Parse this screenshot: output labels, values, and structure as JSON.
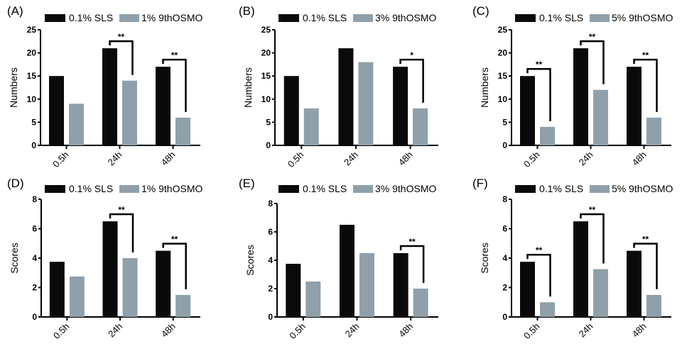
{
  "colors": {
    "sls": "#0a0a0a",
    "osmo": "#8fa0aa",
    "axis": "#000000"
  },
  "chart_data": [
    {
      "type": "bar",
      "panel": "(A)",
      "ylabel": "Numbers",
      "ylim": [
        0,
        25
      ],
      "yticks": [
        0,
        5,
        10,
        15,
        20,
        25
      ],
      "categories": [
        "0.5h",
        "24h",
        "48h"
      ],
      "series": [
        {
          "name": "0.1% SLS",
          "values": [
            15,
            21,
            17
          ]
        },
        {
          "name": "1% 9thOSMO",
          "values": [
            9,
            14,
            6
          ]
        }
      ],
      "significance": [
        null,
        "**",
        "**"
      ]
    },
    {
      "type": "bar",
      "panel": "(B)",
      "ylabel": "Numbers",
      "ylim": [
        0,
        25
      ],
      "yticks": [
        0,
        5,
        10,
        15,
        20,
        25
      ],
      "categories": [
        "0.5h",
        "24h",
        "48h"
      ],
      "series": [
        {
          "name": "0.1% SLS",
          "values": [
            15,
            21,
            17
          ]
        },
        {
          "name": "3% 9thOSMO",
          "values": [
            8,
            18,
            8
          ]
        }
      ],
      "significance": [
        null,
        null,
        "*"
      ]
    },
    {
      "type": "bar",
      "panel": "(C)",
      "ylabel": "Numbers",
      "ylim": [
        0,
        25
      ],
      "yticks": [
        0,
        5,
        10,
        15,
        20,
        25
      ],
      "categories": [
        "0.5h",
        "24h",
        "48h"
      ],
      "series": [
        {
          "name": "0.1% SLS",
          "values": [
            15,
            21,
            17
          ]
        },
        {
          "name": "5% 9thOSMO",
          "values": [
            4,
            12,
            6
          ]
        }
      ],
      "significance": [
        "**",
        "**",
        "**"
      ]
    },
    {
      "type": "bar",
      "panel": "(D)",
      "ylabel": "Scores",
      "ylim": [
        0,
        8
      ],
      "yticks": [
        0,
        2,
        4,
        6,
        8
      ],
      "categories": [
        "0.5h",
        "24h",
        "48h"
      ],
      "series": [
        {
          "name": "0.1% SLS",
          "values": [
            3.75,
            6.5,
            4.5
          ]
        },
        {
          "name": "1% 9thOSMO",
          "values": [
            2.75,
            4,
            1.5
          ]
        }
      ],
      "significance": [
        null,
        "**",
        "**"
      ]
    },
    {
      "type": "bar",
      "panel": "(E)",
      "ylabel": "Scores",
      "ylim": [
        0,
        8
      ],
      "yticks": [
        0,
        2,
        4,
        6,
        8
      ],
      "categories": [
        "0.5h",
        "24h",
        "48h"
      ],
      "series": [
        {
          "name": "0.1% SLS",
          "values": [
            3.75,
            6.5,
            4.5
          ]
        },
        {
          "name": "3% 9thOSMO",
          "values": [
            2.5,
            4.5,
            2
          ]
        }
      ],
      "significance": [
        null,
        null,
        "**"
      ]
    },
    {
      "type": "bar",
      "panel": "(F)",
      "ylabel": "Scores",
      "ylim": [
        0,
        8
      ],
      "yticks": [
        0,
        2,
        4,
        6,
        8
      ],
      "categories": [
        "0.5h",
        "24h",
        "48h"
      ],
      "series": [
        {
          "name": "0.1% SLS",
          "values": [
            3.75,
            6.5,
            4.5
          ]
        },
        {
          "name": "5% 9thOSMO",
          "values": [
            1,
            3.25,
            1.5
          ]
        }
      ],
      "significance": [
        "**",
        "**",
        "**"
      ]
    }
  ]
}
